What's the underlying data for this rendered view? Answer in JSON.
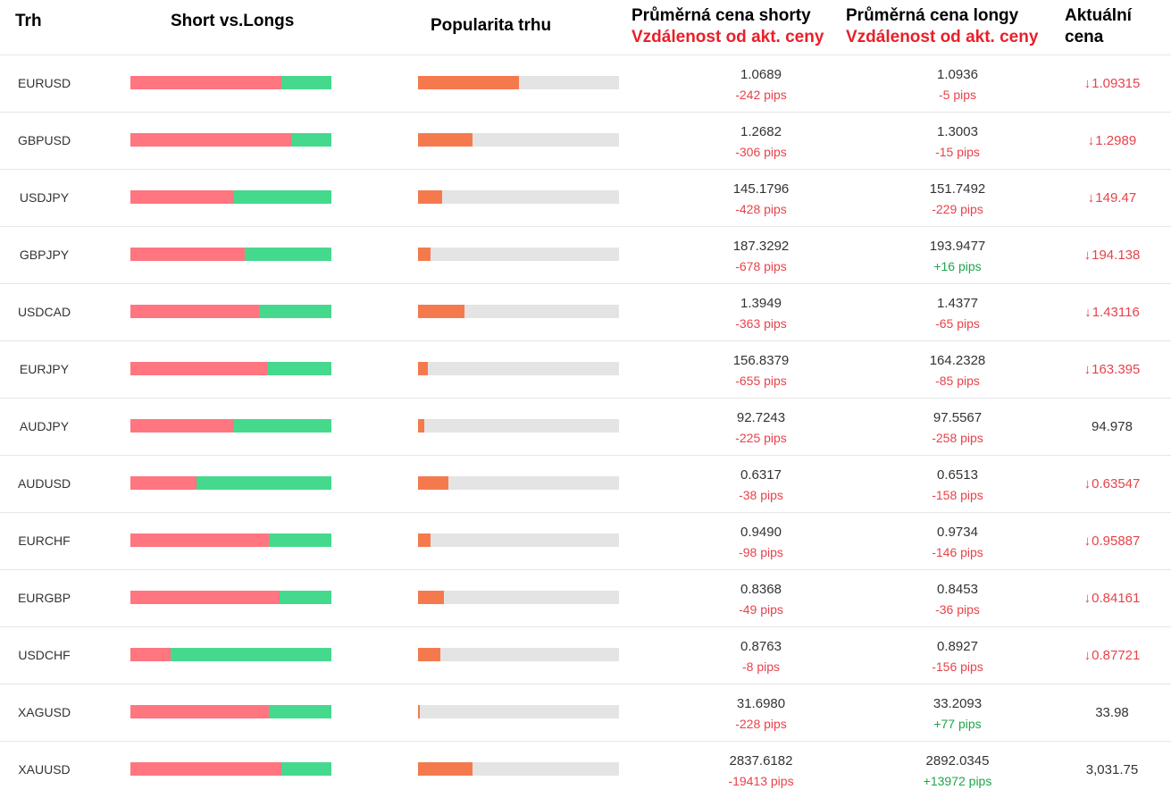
{
  "headers": {
    "market": "Trh",
    "ratio": "Short vs.Longs",
    "popularity": "Popularita trhu",
    "avg_short_line1": "Průměrná cena shorty",
    "avg_short_line2": "Vzdálenost od akt. ceny",
    "avg_long_line1": "Průměrná cena longy",
    "avg_long_line2": "Vzdálenost od akt. ceny",
    "current_line1": "Aktuální",
    "current_line2": "cena"
  },
  "colors": {
    "short_bar": "#ff7580",
    "long_bar": "#45d98d",
    "popularity_fill": "#f47a4e",
    "popularity_track": "#e4e4e4",
    "negative": "#e8424a",
    "positive": "#1ea54a"
  },
  "rows": [
    {
      "market": "EURUSD",
      "short_pct": 75,
      "popularity_pct": 50,
      "avg_short": "1.0689",
      "short_pips": "-242 pips",
      "avg_long": "1.0936",
      "long_pips": "-5 pips",
      "current": "1.09315",
      "current_dir": "down"
    },
    {
      "market": "GBPUSD",
      "short_pct": 80,
      "popularity_pct": 27,
      "avg_short": "1.2682",
      "short_pips": "-306 pips",
      "avg_long": "1.3003",
      "long_pips": "-15 pips",
      "current": "1.2989",
      "current_dir": "down"
    },
    {
      "market": "USDJPY",
      "short_pct": 51,
      "popularity_pct": 12,
      "avg_short": "145.1796",
      "short_pips": "-428 pips",
      "avg_long": "151.7492",
      "long_pips": "-229 pips",
      "current": "149.47",
      "current_dir": "down"
    },
    {
      "market": "GBPJPY",
      "short_pct": 57,
      "popularity_pct": 6,
      "avg_short": "187.3292",
      "short_pips": "-678 pips",
      "avg_long": "193.9477",
      "long_pips": "+16 pips",
      "current": "194.138",
      "current_dir": "down"
    },
    {
      "market": "USDCAD",
      "short_pct": 64,
      "popularity_pct": 23,
      "avg_short": "1.3949",
      "short_pips": "-363 pips",
      "avg_long": "1.4377",
      "long_pips": "-65 pips",
      "current": "1.43116",
      "current_dir": "down"
    },
    {
      "market": "EURJPY",
      "short_pct": 68,
      "popularity_pct": 5,
      "avg_short": "156.8379",
      "short_pips": "-655 pips",
      "avg_long": "164.2328",
      "long_pips": "-85 pips",
      "current": "163.395",
      "current_dir": "down"
    },
    {
      "market": "AUDJPY",
      "short_pct": 51,
      "popularity_pct": 3,
      "avg_short": "92.7243",
      "short_pips": "-225 pips",
      "avg_long": "97.5567",
      "long_pips": "-258 pips",
      "current": "94.978",
      "current_dir": "none"
    },
    {
      "market": "AUDUSD",
      "short_pct": 33,
      "popularity_pct": 15,
      "avg_short": "0.6317",
      "short_pips": "-38 pips",
      "avg_long": "0.6513",
      "long_pips": "-158 pips",
      "current": "0.63547",
      "current_dir": "down"
    },
    {
      "market": "EURCHF",
      "short_pct": 69,
      "popularity_pct": 6,
      "avg_short": "0.9490",
      "short_pips": "-98 pips",
      "avg_long": "0.9734",
      "long_pips": "-146 pips",
      "current": "0.95887",
      "current_dir": "down"
    },
    {
      "market": "EURGBP",
      "short_pct": 74,
      "popularity_pct": 13,
      "avg_short": "0.8368",
      "short_pips": "-49 pips",
      "avg_long": "0.8453",
      "long_pips": "-36 pips",
      "current": "0.84161",
      "current_dir": "down"
    },
    {
      "market": "USDCHF",
      "short_pct": 20,
      "popularity_pct": 11,
      "avg_short": "0.8763",
      "short_pips": "-8 pips",
      "avg_long": "0.8927",
      "long_pips": "-156 pips",
      "current": "0.87721",
      "current_dir": "down"
    },
    {
      "market": "XAGUSD",
      "short_pct": 69,
      "popularity_pct": 1,
      "avg_short": "31.6980",
      "short_pips": "-228 pips",
      "avg_long": "33.2093",
      "long_pips": "+77 pips",
      "current": "33.98",
      "current_dir": "none"
    },
    {
      "market": "XAUUSD",
      "short_pct": 75,
      "popularity_pct": 27,
      "avg_short": "2837.6182",
      "short_pips": "-19413 pips",
      "avg_long": "2892.0345",
      "long_pips": "+13972 pips",
      "current": "3,031.75",
      "current_dir": "none"
    }
  ]
}
